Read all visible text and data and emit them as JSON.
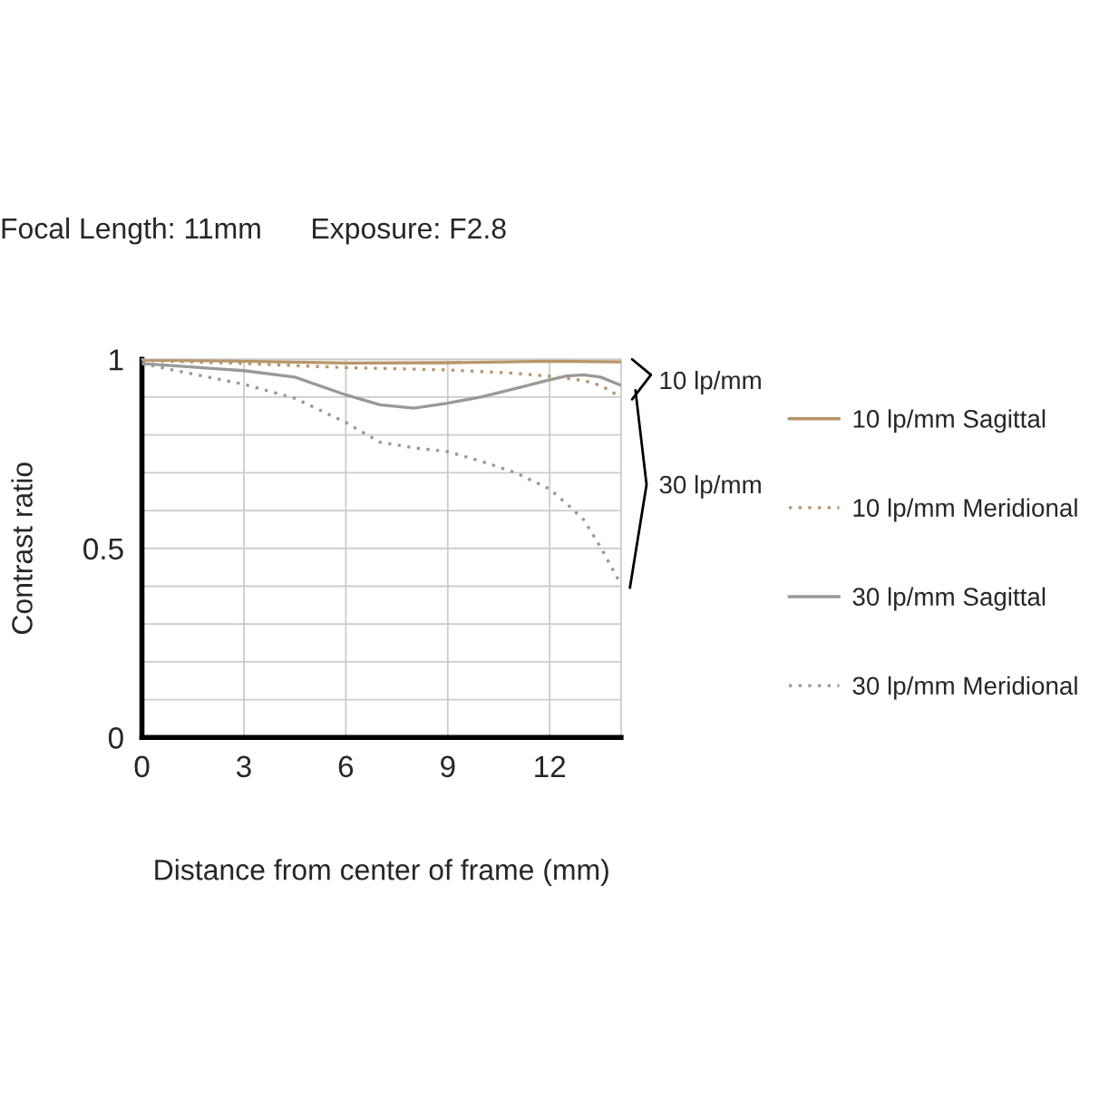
{
  "chart_data": {
    "type": "line",
    "title": "Focal Length: 11mm",
    "subtitle": "Exposure: F2.8",
    "xlabel": "Distance from center of frame (mm)",
    "ylabel": "Contrast ratio",
    "xlim": [
      0,
      14.1
    ],
    "ylim": [
      0,
      1
    ],
    "xticks": [
      0,
      3,
      6,
      9,
      12
    ],
    "yticks": [
      0,
      {
        "value": 0.1,
        "label": null
      },
      {
        "value": 0.2,
        "label": null
      },
      {
        "value": 0.3,
        "label": null
      },
      {
        "value": 0.4,
        "label": null
      },
      0.5,
      {
        "value": 0.6,
        "label": null
      },
      {
        "value": 0.7,
        "label": null
      },
      {
        "value": 0.8,
        "label": null
      },
      {
        "value": 0.9,
        "label": null
      },
      1
    ],
    "grid": true,
    "legend": "right",
    "marker": "none",
    "annotations": [
      "10 lp/mm",
      "30 lp/mm"
    ],
    "series": [
      {
        "name": "10 lp/mm Sagittal",
        "color": "#b8956a",
        "line_style": "solid",
        "x": [
          0,
          3,
          6,
          9,
          12,
          14.1
        ],
        "values": [
          0.998,
          0.995,
          0.99,
          0.991,
          0.995,
          0.993
        ]
      },
      {
        "name": "10 lp/mm Meridional",
        "color": "#b8956a",
        "line_style": "dotted",
        "x": [
          0,
          3,
          6,
          9,
          11,
          12,
          13,
          13.5,
          14.1
        ],
        "values": [
          0.997,
          0.989,
          0.978,
          0.972,
          0.963,
          0.955,
          0.944,
          0.931,
          0.9
        ]
      },
      {
        "name": "30 lp/mm Sagittal",
        "color": "#999999",
        "line_style": "solid",
        "x": [
          0,
          3,
          4.5,
          6,
          7,
          8,
          9,
          10,
          11,
          12,
          12.5,
          13,
          13.5,
          14.1
        ],
        "values": [
          0.989,
          0.97,
          0.953,
          0.906,
          0.88,
          0.871,
          0.884,
          0.901,
          0.923,
          0.946,
          0.956,
          0.959,
          0.953,
          0.931
        ]
      },
      {
        "name": "30 lp/mm Meridional",
        "color": "#999999",
        "line_style": "dotted",
        "x": [
          0,
          1.5,
          3,
          4.5,
          6,
          7,
          8,
          9,
          10,
          11,
          12,
          12.5,
          13,
          13.5,
          14.1
        ],
        "values": [
          0.989,
          0.961,
          0.934,
          0.897,
          0.833,
          0.781,
          0.766,
          0.756,
          0.73,
          0.7,
          0.657,
          0.618,
          0.576,
          0.503,
          0.404
        ]
      }
    ]
  }
}
